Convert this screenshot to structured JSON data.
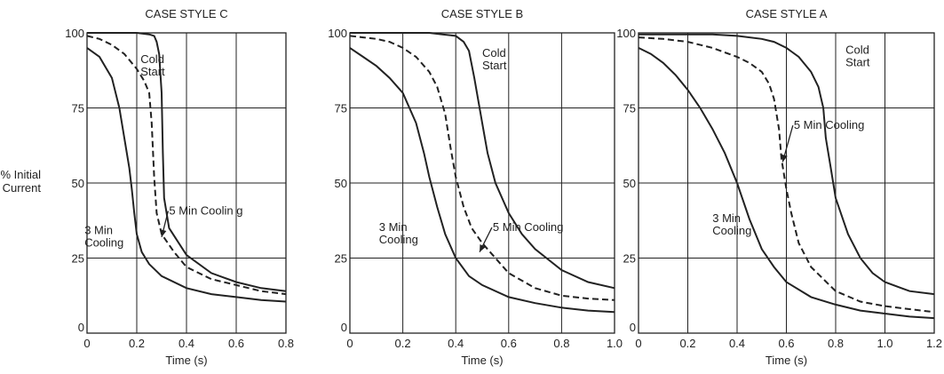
{
  "ylabel_lines": [
    "% Initial",
    "Current"
  ],
  "chart_data": [
    {
      "type": "line",
      "title": "CASE STYLE C",
      "xlabel": "Time (s)",
      "ylabel": "% Initial Current",
      "xlim": [
        0,
        0.8
      ],
      "ylim": [
        0,
        100
      ],
      "xticks": [
        0,
        0.2,
        0.4,
        0.6,
        0.8
      ],
      "xtick_labels": [
        "0",
        "0.2",
        "0.4",
        "0.6",
        "0.8"
      ],
      "yticks": [
        0,
        25,
        50,
        75,
        100
      ],
      "ytick_labels": [
        "0",
        "25",
        "50",
        "75",
        "100"
      ],
      "grid": true,
      "series": [
        {
          "style": "solid",
          "x": [
            0,
            0.05,
            0.1,
            0.13,
            0.15,
            0.17,
            0.18,
            0.19,
            0.2,
            0.22,
            0.25,
            0.3,
            0.4,
            0.5,
            0.6,
            0.7,
            0.8
          ],
          "y": [
            95,
            92,
            85,
            75,
            65,
            55,
            48,
            40,
            33,
            27,
            23,
            19,
            15,
            13,
            12,
            11,
            10.5
          ]
        },
        {
          "style": "dashed",
          "x": [
            0,
            0.05,
            0.1,
            0.15,
            0.2,
            0.23,
            0.25,
            0.26,
            0.27,
            0.28,
            0.3,
            0.35,
            0.4,
            0.5,
            0.6,
            0.7,
            0.8
          ],
          "y": [
            99,
            98,
            96,
            93,
            88,
            84,
            80,
            70,
            52,
            40,
            33,
            27,
            22,
            18,
            16,
            14,
            13
          ]
        },
        {
          "style": "solid",
          "x": [
            0,
            0.1,
            0.2,
            0.25,
            0.27,
            0.28,
            0.29,
            0.3,
            0.305,
            0.31,
            0.33,
            0.4,
            0.5,
            0.6,
            0.7,
            0.8
          ],
          "y": [
            100,
            100,
            100,
            99.5,
            99,
            97,
            93,
            80,
            60,
            45,
            35,
            26,
            20,
            17,
            15,
            14
          ]
        }
      ],
      "annotations": [
        {
          "lines": [
            "Cold",
            "Start"
          ],
          "x": 0.215,
          "y": 90
        },
        {
          "lines": [
            "3 Min",
            "Cooling"
          ],
          "x": -0.01,
          "y": 33
        },
        {
          "lines": [
            "5 Min Coolin g"
          ],
          "x": 0.33,
          "y": 39.5,
          "arrow_to": [
            0.3,
            32
          ]
        }
      ]
    },
    {
      "type": "line",
      "title": "CASE STYLE B",
      "xlabel": "Time (s)",
      "ylabel": "",
      "xlim": [
        0,
        1.0
      ],
      "ylim": [
        0,
        100
      ],
      "xticks": [
        0,
        0.2,
        0.4,
        0.6,
        0.8,
        1.0
      ],
      "xtick_labels": [
        "0",
        "0.2",
        "0.4",
        "0.6",
        "0.8",
        "1.0"
      ],
      "yticks": [
        0,
        25,
        50,
        75,
        100
      ],
      "ytick_labels": [
        "0",
        "25",
        "50",
        "75",
        "100"
      ],
      "grid": true,
      "series": [
        {
          "style": "solid",
          "x": [
            0,
            0.05,
            0.1,
            0.15,
            0.2,
            0.25,
            0.28,
            0.3,
            0.33,
            0.36,
            0.4,
            0.45,
            0.5,
            0.6,
            0.7,
            0.8,
            0.9,
            1.0
          ],
          "y": [
            95,
            92,
            89,
            85,
            80,
            70,
            60,
            52,
            42,
            33,
            25,
            19,
            16,
            12,
            10,
            8.5,
            7.5,
            7
          ]
        },
        {
          "style": "dashed",
          "x": [
            0,
            0.05,
            0.1,
            0.15,
            0.2,
            0.25,
            0.3,
            0.33,
            0.36,
            0.38,
            0.4,
            0.43,
            0.46,
            0.5,
            0.55,
            0.6,
            0.7,
            0.8,
            0.9,
            1.0
          ],
          "y": [
            99,
            98.5,
            98,
            97,
            95,
            92,
            87,
            82,
            73,
            62,
            52,
            42,
            35,
            30,
            25,
            20,
            15,
            12.5,
            11.5,
            11
          ]
        },
        {
          "style": "solid",
          "x": [
            0,
            0.1,
            0.2,
            0.3,
            0.35,
            0.4,
            0.43,
            0.45,
            0.47,
            0.5,
            0.52,
            0.55,
            0.6,
            0.65,
            0.7,
            0.8,
            0.9,
            1.0
          ],
          "y": [
            100,
            100,
            100,
            100,
            99.5,
            99,
            97,
            94,
            85,
            70,
            60,
            50,
            40,
            33,
            28,
            21,
            17,
            15
          ]
        }
      ],
      "annotations": [
        {
          "lines": [
            "Cold",
            "Start"
          ],
          "x": 0.5,
          "y": 92
        },
        {
          "lines": [
            "3 Min",
            "Cooling"
          ],
          "x": 0.11,
          "y": 34
        },
        {
          "lines": [
            "5 Min Cooling"
          ],
          "x": 0.54,
          "y": 34,
          "arrow_to": [
            0.49,
            27
          ]
        }
      ]
    },
    {
      "type": "line",
      "title": "CASE STYLE A",
      "xlabel": "Time (s)",
      "ylabel": "",
      "xlim": [
        0,
        1.2
      ],
      "ylim": [
        0,
        100
      ],
      "xticks": [
        0,
        0.2,
        0.4,
        0.6,
        0.8,
        1.0,
        1.2
      ],
      "xtick_labels": [
        "0",
        "0.2",
        "0.4",
        "0.6",
        "0.8",
        "1.0",
        "1.2"
      ],
      "yticks": [
        0,
        25,
        50,
        75,
        100
      ],
      "ytick_labels": [
        "0",
        "25",
        "50",
        "75",
        "100"
      ],
      "grid": true,
      "series": [
        {
          "style": "solid",
          "x": [
            0,
            0.05,
            0.1,
            0.15,
            0.2,
            0.25,
            0.3,
            0.35,
            0.4,
            0.45,
            0.5,
            0.55,
            0.6,
            0.7,
            0.8,
            0.9,
            1.0,
            1.1,
            1.2
          ],
          "y": [
            95,
            93,
            90,
            86,
            81,
            75,
            68,
            60,
            50,
            38,
            28,
            22,
            17,
            12,
            9.5,
            7.5,
            6.5,
            5.5,
            5
          ]
        },
        {
          "style": "dashed",
          "x": [
            0,
            0.1,
            0.2,
            0.3,
            0.35,
            0.4,
            0.45,
            0.5,
            0.53,
            0.55,
            0.57,
            0.58,
            0.6,
            0.62,
            0.65,
            0.7,
            0.8,
            0.9,
            1.0,
            1.1,
            1.2
          ],
          "y": [
            98.5,
            98,
            97,
            95,
            93.5,
            92,
            90,
            87,
            83,
            78,
            68,
            58,
            48,
            40,
            30,
            22,
            14,
            10.5,
            9,
            8,
            7
          ]
        },
        {
          "style": "solid",
          "x": [
            0,
            0.1,
            0.2,
            0.3,
            0.4,
            0.5,
            0.55,
            0.6,
            0.65,
            0.7,
            0.73,
            0.75,
            0.76,
            0.78,
            0.8,
            0.85,
            0.9,
            0.95,
            1.0,
            1.1,
            1.2
          ],
          "y": [
            99.5,
            99.5,
            99.5,
            99.5,
            99,
            98,
            97,
            95,
            92,
            87,
            82,
            75,
            65,
            55,
            45,
            33,
            25,
            20,
            17,
            14,
            13
          ]
        }
      ],
      "annotations": [
        {
          "lines": [
            "Cold",
            "Start"
          ],
          "x": 0.84,
          "y": 93
        },
        {
          "lines": [
            "3 Min",
            "Cooling"
          ],
          "x": 0.3,
          "y": 37
        },
        {
          "lines": [
            "5 Min Cooling"
          ],
          "x": 0.63,
          "y": 68,
          "arrow_to": [
            0.585,
            57
          ]
        }
      ]
    }
  ]
}
